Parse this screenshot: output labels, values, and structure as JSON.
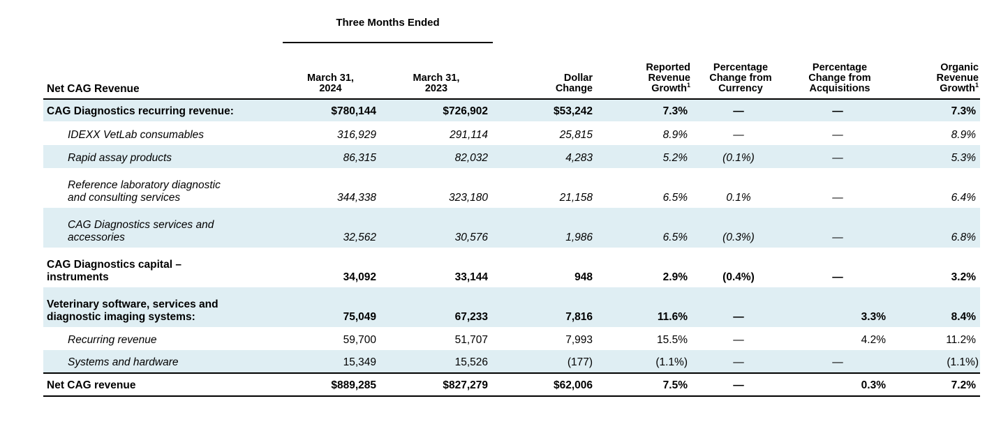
{
  "header": {
    "period_label": "Three Months Ended",
    "col_label": "Net CAG Revenue",
    "col_2024": "March 31, 2024",
    "col_2024_a": "March 31,",
    "col_2024_b": "2024",
    "col_2023_a": "March 31,",
    "col_2023_b": "2023",
    "col_dollar_a": "Dollar",
    "col_dollar_b": "Change",
    "col_reported_a": "Reported",
    "col_reported_b": "Revenue",
    "col_reported_c": "Growth",
    "col_currency_a": "Percentage",
    "col_currency_b": "Change from",
    "col_currency_c": "Currency",
    "col_acq_a": "Percentage",
    "col_acq_b": "Change from",
    "col_acq_c": "Acquisitions",
    "col_organic_a": "Organic",
    "col_organic_b": "Revenue",
    "col_organic_c": "Growth",
    "footnote_mark": "1"
  },
  "rows": [
    {
      "label": "CAG Diagnostics recurring revenue:",
      "v2024": "$780,144",
      "v2023": "$726,902",
      "dollar": "$53,242",
      "reported": "7.3%",
      "currency": "—",
      "acq": "—",
      "organic": "7.3%"
    },
    {
      "label": "IDEXX VetLab consumables",
      "v2024": "316,929",
      "v2023": "291,114",
      "dollar": "25,815",
      "reported": "8.9%",
      "currency": "—",
      "acq": "—",
      "organic": "8.9%"
    },
    {
      "label": "Rapid assay products",
      "v2024": "86,315",
      "v2023": "82,032",
      "dollar": "4,283",
      "reported": "5.2%",
      "currency": "(0.1%)",
      "acq": "—",
      "organic": "5.3%"
    },
    {
      "label_a": "Reference laboratory diagnostic",
      "label_b": "and consulting services",
      "v2024": "344,338",
      "v2023": "323,180",
      "dollar": "21,158",
      "reported": "6.5%",
      "currency": "0.1%",
      "acq": "—",
      "organic": "6.4%"
    },
    {
      "label_a": "CAG Diagnostics services and",
      "label_b": "accessories",
      "v2024": "32,562",
      "v2023": "30,576",
      "dollar": "1,986",
      "reported": "6.5%",
      "currency": "(0.3%)",
      "acq": "—",
      "organic": "6.8%"
    },
    {
      "label_a": "CAG Diagnostics capital –",
      "label_b": "instruments",
      "v2024": "34,092",
      "v2023": "33,144",
      "dollar": "948",
      "reported": "2.9%",
      "currency": "(0.4%)",
      "acq": "—",
      "organic": "3.2%"
    },
    {
      "label_a": "Veterinary software, services and",
      "label_b": "diagnostic imaging systems:",
      "v2024": "75,049",
      "v2023": "67,233",
      "dollar": "7,816",
      "reported": "11.6%",
      "currency": "—",
      "acq": "3.3%",
      "organic": "8.4%"
    },
    {
      "label": "Recurring revenue",
      "v2024": "59,700",
      "v2023": "51,707",
      "dollar": "7,993",
      "reported": "15.5%",
      "currency": "—",
      "acq": "4.2%",
      "organic": "11.2%"
    },
    {
      "label": "Systems and hardware",
      "v2024": "15,349",
      "v2023": "15,526",
      "dollar": "(177)",
      "reported": "(1.1%)",
      "currency": "—",
      "acq": "—",
      "organic": "(1.1%)"
    },
    {
      "label": "Net CAG revenue",
      "v2024": "$889,285",
      "v2023": "$827,279",
      "dollar": "$62,006",
      "reported": "7.5%",
      "currency": "—",
      "acq": "0.3%",
      "organic": "7.2%"
    }
  ],
  "colors": {
    "row_shade": "#dfeef3",
    "rule": "#000000"
  }
}
